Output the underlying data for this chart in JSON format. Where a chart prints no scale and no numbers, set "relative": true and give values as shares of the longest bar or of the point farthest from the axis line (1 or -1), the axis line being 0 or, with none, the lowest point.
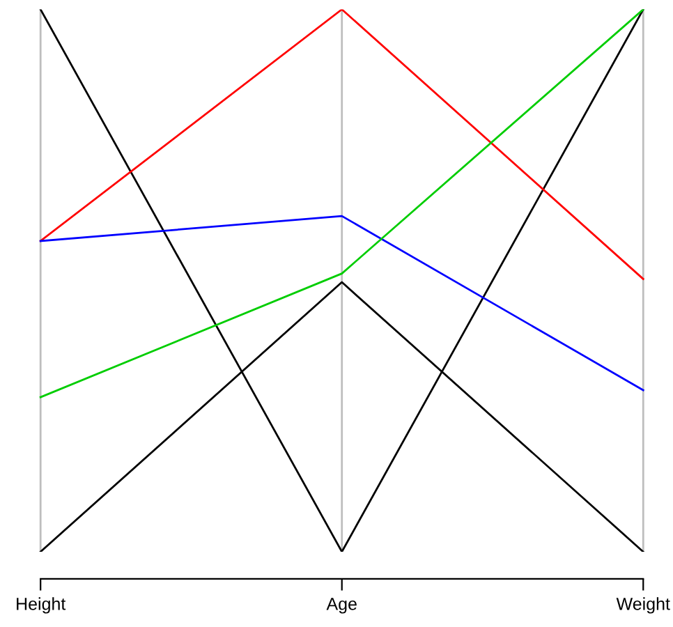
{
  "chart_data": {
    "type": "line",
    "relative": true,
    "grid": "x",
    "marker": "none",
    "line_style": "solid",
    "categories": [
      "Height",
      "Age",
      "Weight"
    ],
    "series": [
      {
        "color": "#000000",
        "values": [
          1,
          0,
          1
        ]
      },
      {
        "color": "#ff0000",
        "values": [
          0.573,
          1,
          0.503
        ]
      },
      {
        "color": "#0000ff",
        "values": [
          0.573,
          0.619,
          0.298
        ]
      },
      {
        "color": "#00cd00",
        "values": [
          0.285,
          0.513,
          1
        ]
      },
      {
        "color": "#000000",
        "values": [
          0,
          0.497,
          0
        ]
      }
    ]
  }
}
